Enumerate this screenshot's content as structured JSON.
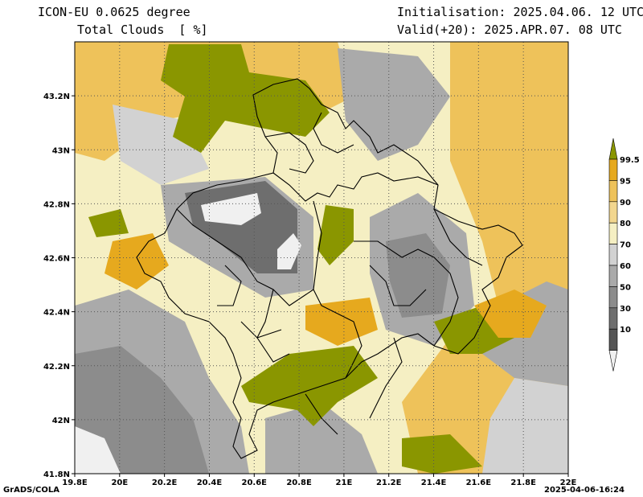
{
  "header": {
    "model_line": "ICON-EU 0.0625 degree",
    "variable_line": "Total Clouds  [ %]",
    "init_line": "Initialisation: 2025.04.06. 12 UTC",
    "valid_line": "Valid(+20): 2025.APR.07. 08 UTC"
  },
  "footer": {
    "credit": "GrADS/COLA",
    "timestamp": "2025-04-06-16:24"
  },
  "axes": {
    "lon_labels": [
      "19.8E",
      "20E",
      "20.2E",
      "20.4E",
      "20.6E",
      "20.8E",
      "21E",
      "21.2E",
      "21.4E",
      "21.6E",
      "21.8E",
      "22E"
    ],
    "lat_labels": [
      "43.2N",
      "43N",
      "42.8N",
      "42.6N",
      "42.4N",
      "42.2N",
      "42N",
      "41.8N"
    ],
    "lon_values": [
      19.8,
      20.0,
      20.2,
      20.4,
      20.6,
      20.8,
      21.0,
      21.2,
      21.4,
      21.6,
      21.8,
      22.0
    ],
    "lat_values": [
      43.2,
      43.0,
      42.8,
      42.6,
      42.4,
      42.2,
      42.0,
      41.8
    ]
  },
  "colorbar": {
    "labels": [
      "99.5",
      "95",
      "90",
      "80",
      "70",
      "60",
      "50",
      "30",
      "10"
    ],
    "colors": [
      "#8a9600",
      "#e6a91e",
      "#eec25a",
      "#f2d68e",
      "#f5efc3",
      "#d2d2d2",
      "#aaaaaa",
      "#8c8c8c",
      "#6e6e6e",
      "#555555",
      "#f0f0f0"
    ]
  },
  "map_colors": {
    "water_void": "#f0f0f0",
    "border": "#000000",
    "grid": "#555555"
  }
}
